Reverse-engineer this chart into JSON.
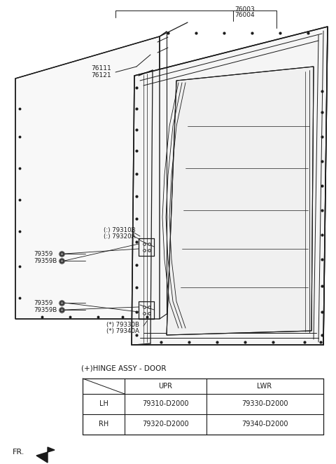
{
  "bg_color": "#ffffff",
  "line_color": "#1a1a1a",
  "label_76003": "76003",
  "label_76004": "76004",
  "label_76111": "76111",
  "label_76121": "76121",
  "label_79310B": "(:) 79310B",
  "label_79320A": "(:) 79320A",
  "label_79330B": "(*) 79330B",
  "label_79340A": "(*) 79340A",
  "label_79359_u1": "79359",
  "label_79359B_u": "79359B",
  "label_79359_l1": "79359",
  "label_79359B_l": "79359B",
  "hinge_title": "(+)HINGE ASSY - DOOR",
  "table_col2": "UPR",
  "table_col3": "LWR",
  "table_r1c1": "LH",
  "table_r1c2": "79310-D2000",
  "table_r1c3": "79330-D2000",
  "table_r2c1": "RH",
  "table_r2c2": "79320-D2000",
  "table_r2c3": "79340-D2000",
  "fr_label": "FR."
}
